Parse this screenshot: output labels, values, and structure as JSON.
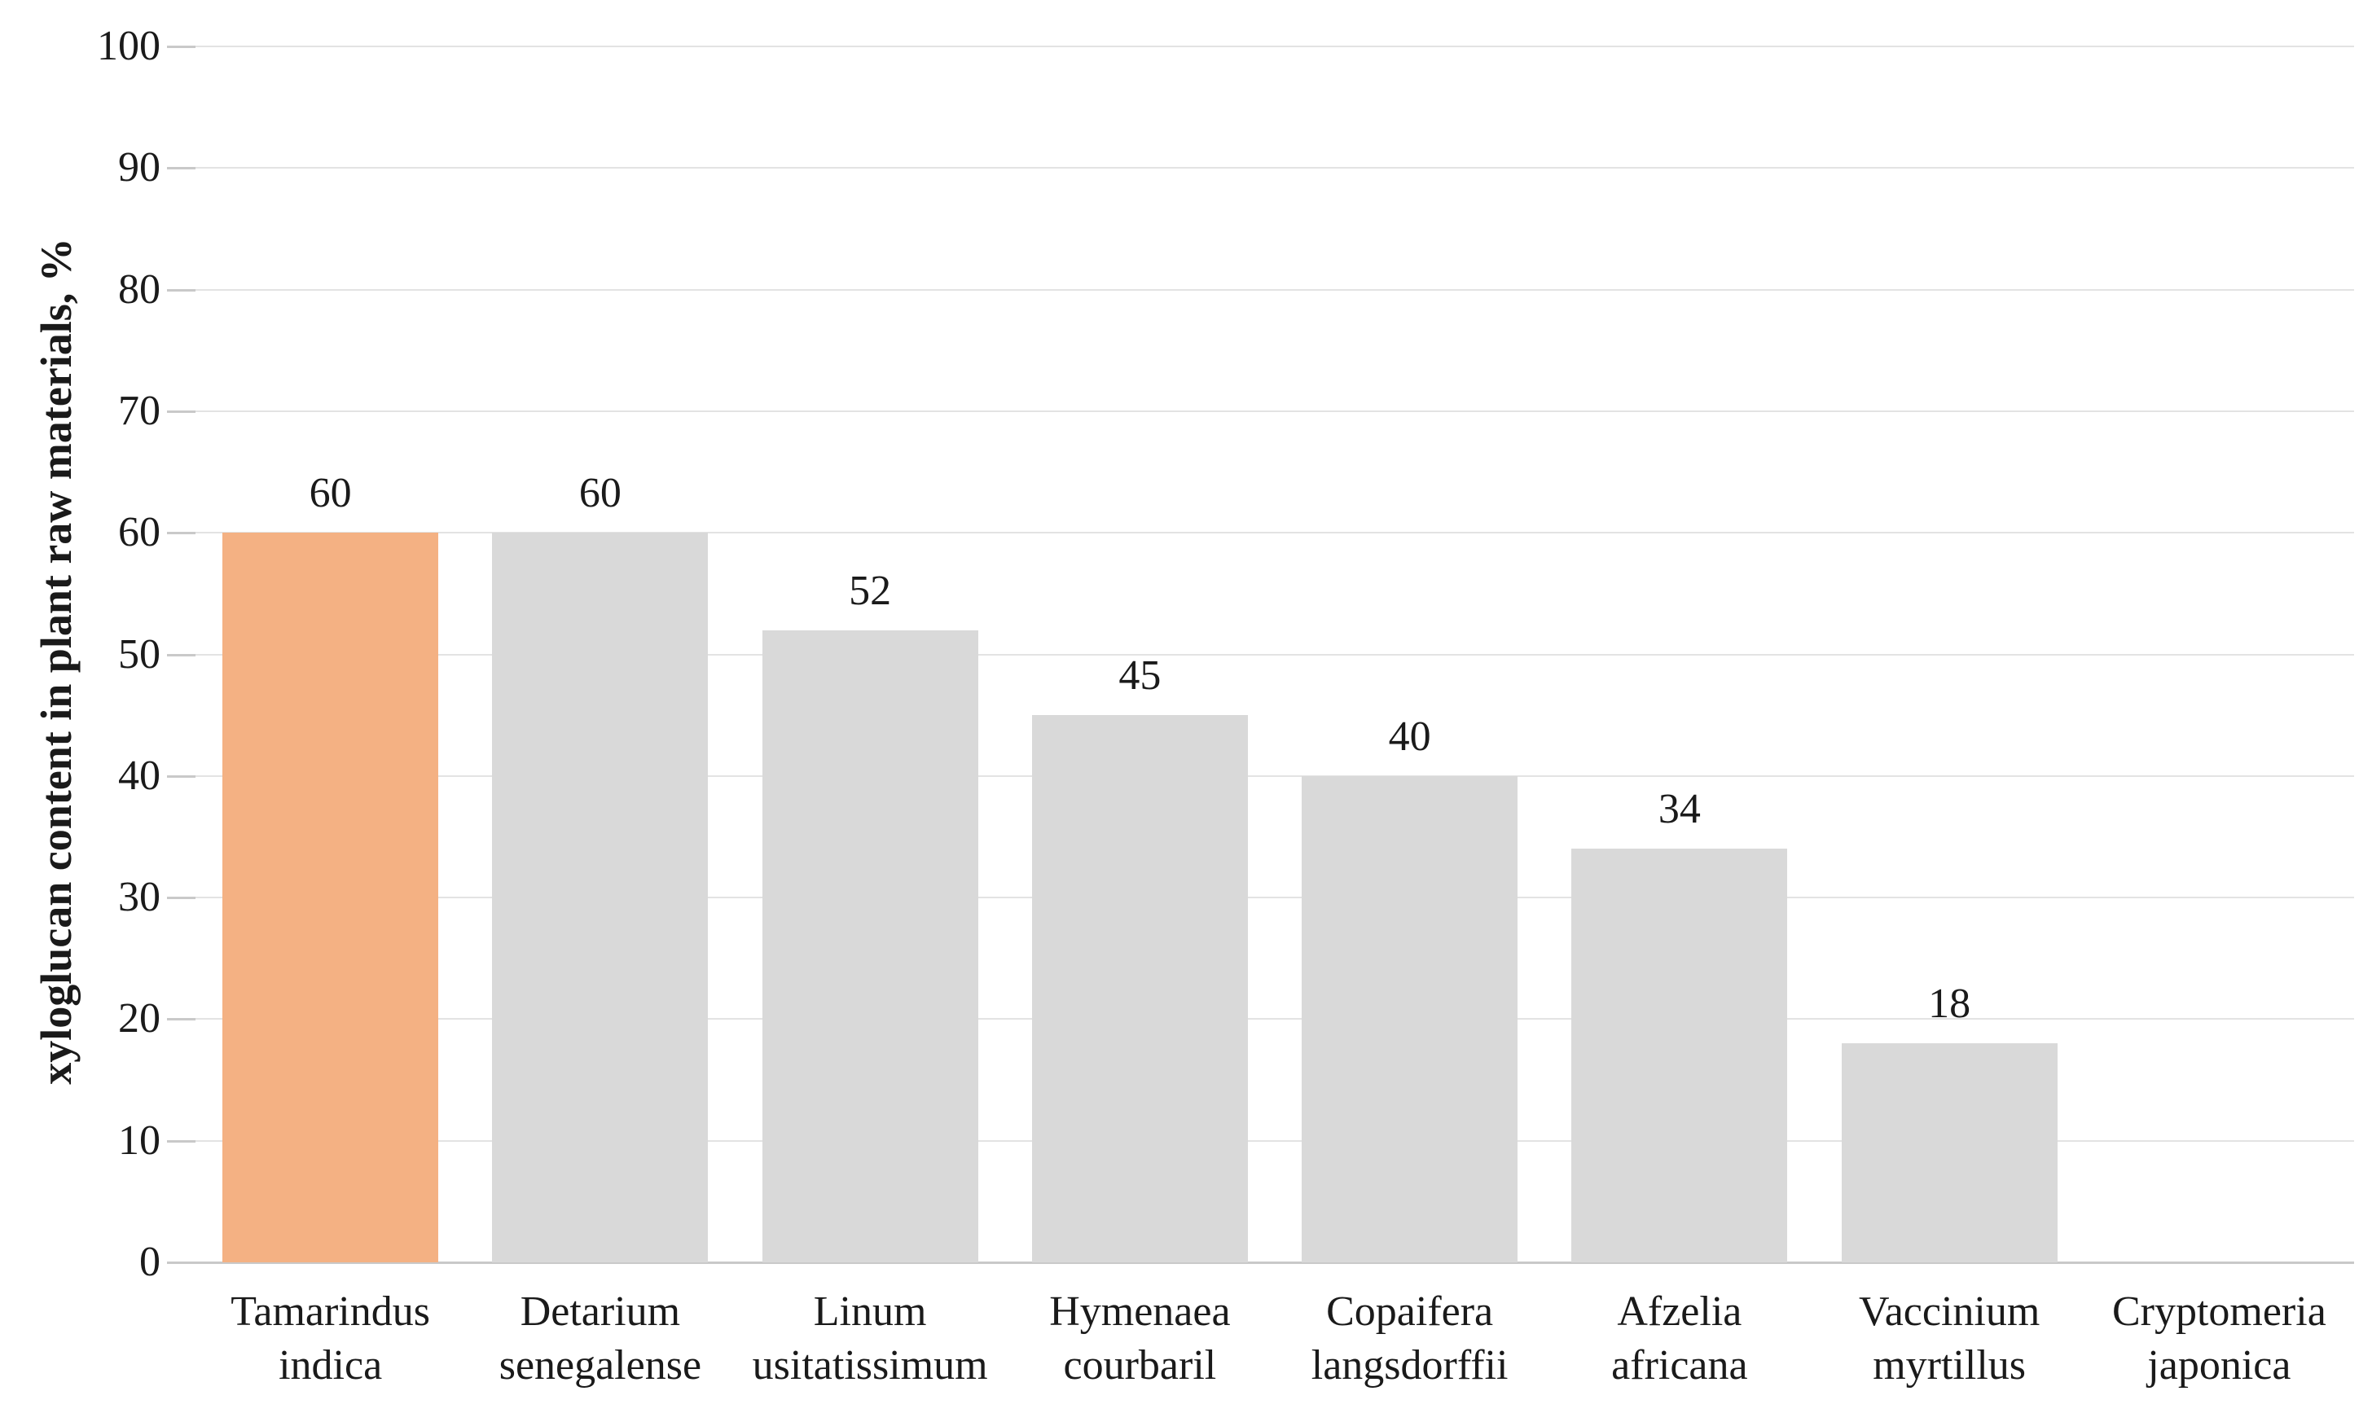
{
  "chart_data": {
    "type": "bar",
    "title": "",
    "xlabel": "",
    "ylabel": "xyloglucan content in plant raw materials, %",
    "categories": [
      "Tamarindus\nindica",
      "Detarium\nsenegalense",
      "Linum\nusitatissimum",
      "Hymenaea\ncourbaril",
      "Copaifera\nlangsdorffii",
      "Afzelia\nafricana",
      "Vaccinium\nmyrtillus",
      "Cryptomeria\njaponica"
    ],
    "values": [
      60,
      60,
      52,
      45,
      40,
      34,
      18,
      0
    ],
    "data_labels": [
      "60",
      "60",
      "52",
      "45",
      "40",
      "34",
      "18",
      ""
    ],
    "ylim": [
      0,
      100
    ],
    "ytick_step": 10,
    "yticks": [
      0,
      10,
      20,
      30,
      40,
      50,
      60,
      70,
      80,
      90,
      100
    ],
    "grid": true,
    "legend": false,
    "highlight_index": 0,
    "colors": {
      "bar": "#D9D9D9",
      "highlight": "#F4B183",
      "gridline": "#E3E3E3",
      "axis_line": "#C9C9C9",
      "text": "#1A1A1A"
    }
  }
}
